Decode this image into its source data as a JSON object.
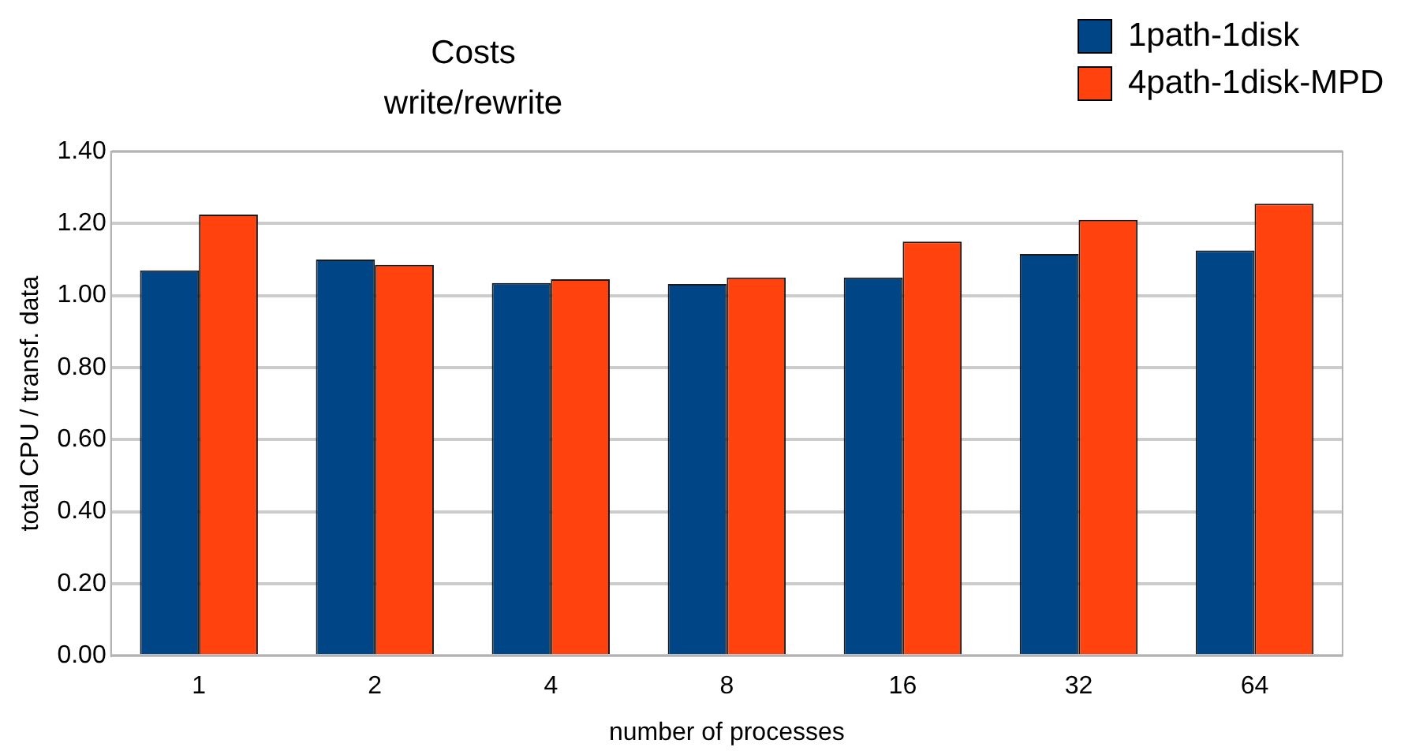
{
  "chart_data": {
    "type": "bar",
    "title": "Costs\nwrite/rewrite",
    "xlabel": "number of processes",
    "ylabel": "total CPU / transf. data",
    "categories": [
      "1",
      "2",
      "4",
      "8",
      "16",
      "32",
      "64"
    ],
    "series": [
      {
        "name": "1path-1disk",
        "color": "#004586",
        "values": [
          1.07,
          1.1,
          1.035,
          1.032,
          1.05,
          1.115,
          1.125
        ]
      },
      {
        "name": "4path-1disk-MPD",
        "color": "#ff420e",
        "values": [
          1.225,
          1.085,
          1.045,
          1.05,
          1.15,
          1.21,
          1.255
        ]
      }
    ],
    "ylim": [
      0,
      1.4
    ],
    "yticks": [
      {
        "value": 0,
        "label": "0.00"
      },
      {
        "value": 0.2,
        "label": "0.20"
      },
      {
        "value": 0.4,
        "label": "0.40"
      },
      {
        "value": 0.6,
        "label": "0.60"
      },
      {
        "value": 0.8,
        "label": "0.80"
      },
      {
        "value": 1,
        "label": "1.00"
      },
      {
        "value": 1.2,
        "label": "1.20"
      },
      {
        "value": 1.4,
        "label": "1.40"
      }
    ],
    "grid": "y",
    "legend": "top right"
  }
}
